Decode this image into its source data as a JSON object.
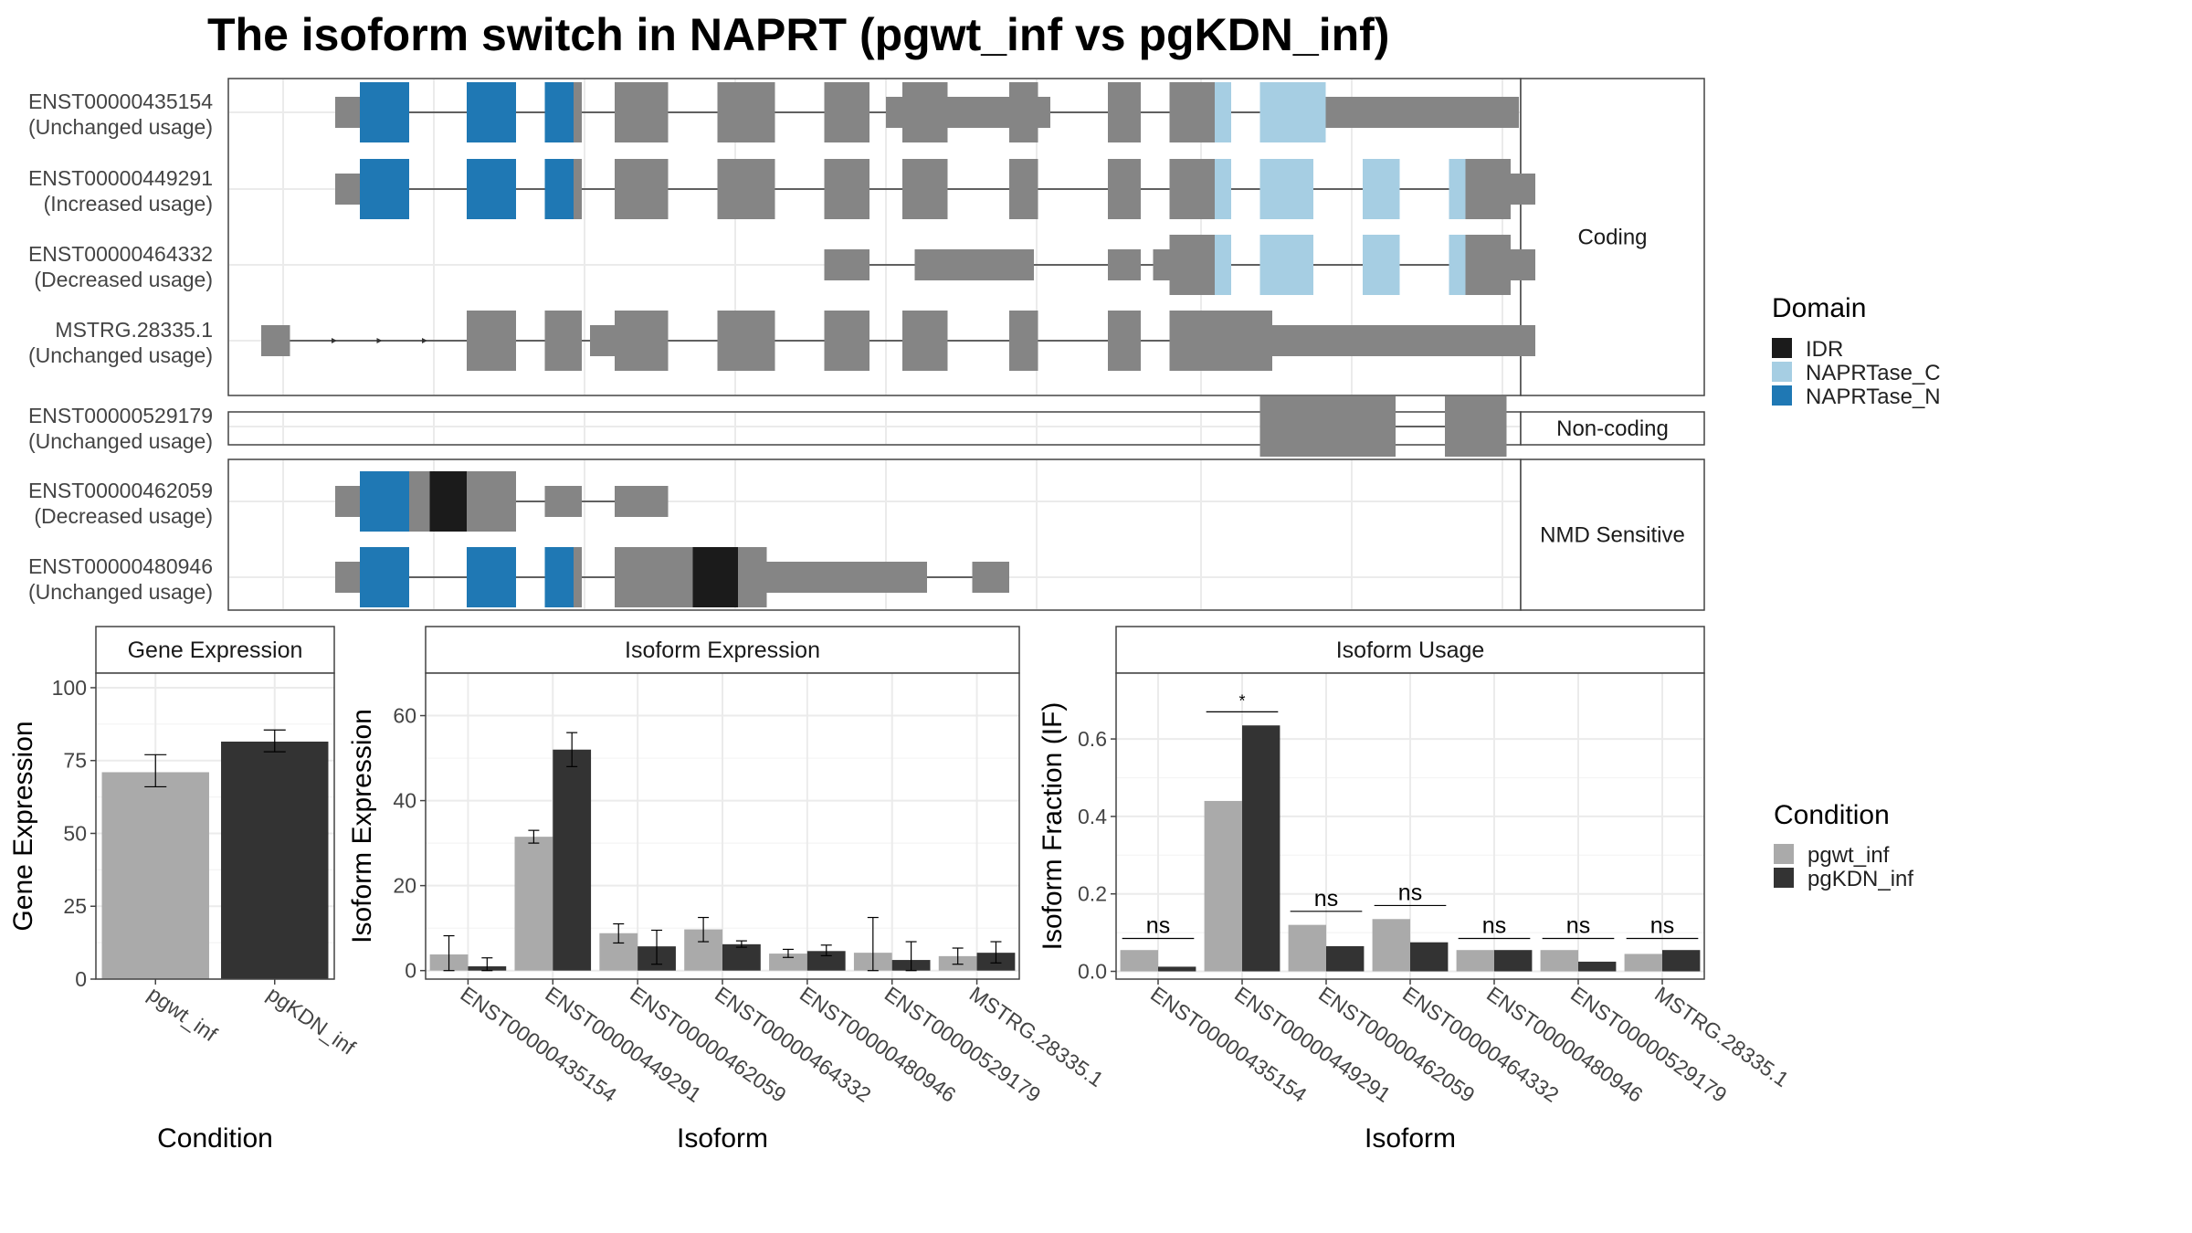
{
  "title": "The isoform switch in NAPRT (pgwt_inf vs pgKDN_inf)",
  "colors": {
    "IDR": "#1b1b1b",
    "NAPRTase_C": "#a6cee3",
    "NAPRTase_N": "#1f78b4",
    "exon": "#858585",
    "pgwt_inf": "#aaaaaa",
    "pgKDN_inf": "#333333",
    "strip": "#ffffff",
    "grid": "#ebebeb"
  },
  "structure": {
    "groups": [
      {
        "label": "Coding",
        "rows": [
          0,
          1,
          2,
          3
        ]
      },
      {
        "label": "Non-coding",
        "rows": [
          4
        ]
      },
      {
        "label": "NMD Sensitive",
        "rows": [
          5,
          6
        ]
      }
    ],
    "transcripts": [
      {
        "id": "ENST00000435154",
        "usage": "(Unchanged usage)",
        "utr": [
          [
            0.13,
            0.16
          ],
          [
            0.8,
            0.85
          ],
          [
            0.85,
            1.0
          ]
        ],
        "exons": [
          [
            0.16,
            0.22,
            "NAPRTase_N"
          ],
          [
            0.29,
            0.35,
            "NAPRTase_N"
          ],
          [
            0.385,
            0.42,
            "NAPRTase_N"
          ],
          [
            0.42,
            0.43,
            "exon"
          ],
          [
            0.47,
            0.535,
            "exon"
          ],
          [
            0.595,
            0.665,
            "exon"
          ],
          [
            0.725,
            0.78,
            "exon"
          ],
          [
            0.82,
            0.875,
            "exon"
          ],
          [
            0.95,
            0.985,
            "exon"
          ],
          [
            1.07,
            1.11,
            "exon"
          ],
          [
            1.145,
            1.2,
            "exon"
          ],
          [
            1.2,
            1.22,
            "NAPRTase_C"
          ],
          [
            1.255,
            1.335,
            "NAPRTase_C"
          ]
        ],
        "tail": [
          [
            1.335,
            1.57
          ]
        ]
      },
      {
        "id": "ENST00000449291",
        "usage": "(Increased usage)",
        "utr": [
          [
            0.13,
            0.16
          ],
          [
            1.56,
            1.59
          ]
        ],
        "exons": [
          [
            0.16,
            0.22,
            "NAPRTase_N"
          ],
          [
            0.29,
            0.35,
            "NAPRTase_N"
          ],
          [
            0.385,
            0.42,
            "NAPRTase_N"
          ],
          [
            0.42,
            0.43,
            "exon"
          ],
          [
            0.47,
            0.535,
            "exon"
          ],
          [
            0.595,
            0.665,
            "exon"
          ],
          [
            0.725,
            0.78,
            "exon"
          ],
          [
            0.82,
            0.875,
            "exon"
          ],
          [
            0.95,
            0.985,
            "exon"
          ],
          [
            1.07,
            1.11,
            "exon"
          ],
          [
            1.145,
            1.2,
            "exon"
          ],
          [
            1.2,
            1.22,
            "NAPRTase_C"
          ],
          [
            1.255,
            1.32,
            "NAPRTase_C"
          ],
          [
            1.38,
            1.425,
            "NAPRTase_C"
          ],
          [
            1.485,
            1.505,
            "NAPRTase_C"
          ],
          [
            1.505,
            1.525,
            "exon"
          ],
          [
            1.525,
            1.56,
            "exon"
          ]
        ],
        "tail": []
      },
      {
        "id": "ENST00000464332",
        "usage": "(Decreased usage)",
        "utr": [
          [
            0.725,
            0.78
          ],
          [
            0.835,
            0.98
          ],
          [
            1.07,
            1.11
          ],
          [
            1.125,
            1.145
          ],
          [
            1.56,
            1.59
          ]
        ],
        "exons": [
          [
            1.145,
            1.2,
            "exon"
          ],
          [
            1.2,
            1.22,
            "NAPRTase_C"
          ],
          [
            1.255,
            1.32,
            "NAPRTase_C"
          ],
          [
            1.38,
            1.425,
            "NAPRTase_C"
          ],
          [
            1.485,
            1.505,
            "NAPRTase_C"
          ],
          [
            1.505,
            1.525,
            "exon"
          ],
          [
            1.525,
            1.56,
            "exon"
          ]
        ],
        "tail": []
      },
      {
        "id": "MSTRG.28335.1",
        "usage": "(Unchanged usage)",
        "utr": [
          [
            0.04,
            0.075
          ],
          [
            0.44,
            0.47
          ],
          [
            1.27,
            1.59
          ]
        ],
        "exons": [
          [
            0.29,
            0.35,
            "exon"
          ],
          [
            0.385,
            0.43,
            "exon"
          ],
          [
            0.47,
            0.535,
            "exon"
          ],
          [
            0.595,
            0.665,
            "exon"
          ],
          [
            0.725,
            0.78,
            "exon"
          ],
          [
            0.82,
            0.875,
            "exon"
          ],
          [
            0.95,
            0.985,
            "exon"
          ],
          [
            1.07,
            1.11,
            "exon"
          ],
          [
            1.145,
            1.27,
            "exon"
          ]
        ],
        "tail": [],
        "arrows": true
      },
      {
        "id": "ENST00000529179",
        "usage": "(Unchanged usage)",
        "utr": [],
        "exons": [
          [
            1.255,
            1.42,
            "exon"
          ],
          [
            1.48,
            1.555,
            "exon"
          ]
        ],
        "tail": []
      },
      {
        "id": "ENST00000462059",
        "usage": "(Decreased usage)",
        "utr": [
          [
            0.13,
            0.16
          ],
          [
            0.29,
            0.35
          ],
          [
            0.385,
            0.43
          ],
          [
            0.47,
            0.535
          ]
        ],
        "exons": [
          [
            0.16,
            0.22,
            "NAPRTase_N"
          ],
          [
            0.22,
            0.245,
            "exon"
          ],
          [
            0.245,
            0.29,
            "IDR"
          ],
          [
            0.29,
            0.35,
            "exon"
          ]
        ],
        "tail": []
      },
      {
        "id": "ENST00000480946",
        "usage": "(Unchanged usage)",
        "utr": [
          [
            0.13,
            0.16
          ],
          [
            0.655,
            0.85
          ],
          [
            0.905,
            0.95
          ]
        ],
        "exons": [
          [
            0.16,
            0.22,
            "NAPRTase_N"
          ],
          [
            0.29,
            0.35,
            "NAPRTase_N"
          ],
          [
            0.385,
            0.42,
            "NAPRTase_N"
          ],
          [
            0.42,
            0.43,
            "exon"
          ],
          [
            0.47,
            0.565,
            "exon"
          ],
          [
            0.565,
            0.62,
            "IDR"
          ],
          [
            0.62,
            0.655,
            "exon"
          ]
        ],
        "tail": []
      }
    ]
  },
  "legend_domain": {
    "title": "Domain",
    "items": [
      "IDR",
      "NAPRTase_C",
      "NAPRTase_N"
    ]
  },
  "legend_condition": {
    "title": "Condition",
    "items": [
      "pgwt_inf",
      "pgKDN_inf"
    ]
  },
  "chart_data": [
    {
      "type": "bar",
      "panel_title": "Gene Expression",
      "xlabel": "Condition",
      "ylabel": "Gene Expression",
      "categories": [
        "pgwt_inf",
        "pgKDN_inf"
      ],
      "values": [
        71,
        81.5
      ],
      "errors": [
        [
          66,
          77
        ],
        [
          78,
          85.5
        ]
      ],
      "ylim": [
        0,
        105
      ],
      "yticks": [
        0,
        25,
        50,
        75,
        100
      ]
    },
    {
      "type": "bar",
      "panel_title": "Isoform Expression",
      "xlabel": "Isoform",
      "ylabel": "Isoform Expression",
      "categories": [
        "ENST00000435154",
        "ENST00000449291",
        "ENST00000462059",
        "ENST00000464332",
        "ENST00000480946",
        "ENST00000529179",
        "MSTRG.28335.1"
      ],
      "series": [
        {
          "name": "pgwt_inf",
          "values": [
            3.8,
            31.5,
            8.8,
            9.7,
            4.0,
            4.2,
            3.4
          ],
          "errors": [
            [
              0,
              8.2
            ],
            [
              30,
              33
            ],
            [
              6.5,
              11
            ],
            [
              6.8,
              12.5
            ],
            [
              3.1,
              5.0
            ],
            [
              0,
              12.5
            ],
            [
              1.5,
              5.3
            ]
          ]
        },
        {
          "name": "pgKDN_inf",
          "values": [
            1.0,
            52.0,
            5.7,
            6.2,
            4.6,
            2.5,
            4.2
          ],
          "errors": [
            [
              0,
              3.0
            ],
            [
              48,
              56
            ],
            [
              1.5,
              9.5
            ],
            [
              5.5,
              7.0
            ],
            [
              3.5,
              6.0
            ],
            [
              0,
              6.8
            ],
            [
              1.8,
              6.8
            ]
          ]
        }
      ],
      "ylim": [
        -2,
        70
      ],
      "yticks": [
        0,
        20,
        40,
        60
      ]
    },
    {
      "type": "bar",
      "panel_title": "Isoform Usage",
      "xlabel": "Isoform",
      "ylabel": "Isoform Fraction (IF)",
      "categories": [
        "ENST00000435154",
        "ENST00000449291",
        "ENST00000462059",
        "ENST00000464332",
        "ENST00000480946",
        "ENST00000529179",
        "MSTRG.28335.1"
      ],
      "series": [
        {
          "name": "pgwt_inf",
          "values": [
            0.055,
            0.44,
            0.12,
            0.135,
            0.055,
            0.055,
            0.045
          ]
        },
        {
          "name": "pgKDN_inf",
          "values": [
            0.012,
            0.635,
            0.065,
            0.075,
            0.055,
            0.025,
            0.055
          ]
        }
      ],
      "significance": [
        "ns",
        "*",
        "ns",
        "ns",
        "ns",
        "ns",
        "ns"
      ],
      "sig_level": [
        0.085,
        0.67,
        0.155,
        0.17,
        0.085,
        0.085,
        0.085
      ],
      "ylim": [
        -0.02,
        0.77
      ],
      "yticks": [
        0.0,
        0.2,
        0.4,
        0.6
      ]
    }
  ]
}
